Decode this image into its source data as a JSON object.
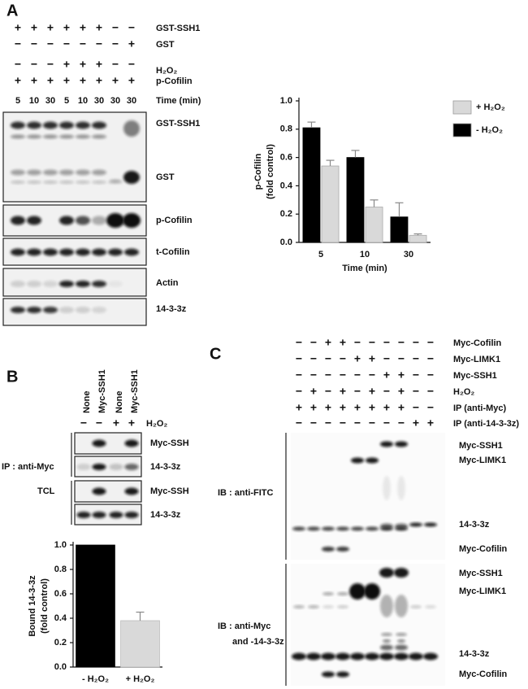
{
  "panel_a": {
    "letter": "A",
    "rows": [
      {
        "label": "GST-SSH1",
        "signs": [
          "+",
          "+",
          "+",
          "+",
          "+",
          "+",
          "−",
          "−"
        ]
      },
      {
        "label": "GST",
        "signs": [
          "−",
          "−",
          "−",
          "−",
          "−",
          "−",
          "−",
          "+"
        ]
      },
      {
        "label": "H₂O₂",
        "signs": [
          "−",
          "−",
          "−",
          "+",
          "+",
          "+",
          "−",
          "−"
        ]
      },
      {
        "label": "p-Cofilin",
        "signs": [
          "+",
          "+",
          "+",
          "+",
          "+",
          "+",
          "+",
          "+"
        ]
      }
    ],
    "time_label": "Time (min)",
    "times": [
      "5",
      "10",
      "30",
      "5",
      "10",
      "30",
      "30",
      "30"
    ],
    "blot_labels": [
      "GST-SSH1",
      "GST",
      "p-Cofilin",
      "t-Cofilin",
      "Actin",
      "14-3-3z"
    ]
  },
  "panel_b": {
    "letter": "B",
    "columns": [
      "None",
      "Myc-SSH1",
      "None",
      "Myc-SSH1"
    ],
    "h2o2_label": "H₂O₂",
    "h2o2_signs": [
      "−",
      "−",
      "+",
      "+"
    ],
    "group_labels": [
      "IP : anti-Myc",
      "TCL"
    ],
    "blot_labels": [
      "Myc-SSH",
      "14-3-3z",
      "Myc-SSH",
      "14-3-3z"
    ]
  },
  "panel_c": {
    "letter": "C",
    "rows": [
      {
        "label": "Myc-Cofilin",
        "signs": [
          "−",
          "−",
          "+",
          "+",
          "−",
          "−",
          "−",
          "−",
          "−",
          "−"
        ]
      },
      {
        "label": "Myc-LIMK1",
        "signs": [
          "−",
          "−",
          "−",
          "−",
          "+",
          "+",
          "−",
          "−",
          "−",
          "−"
        ]
      },
      {
        "label": "Myc-SSH1",
        "signs": [
          "−",
          "−",
          "−",
          "−",
          "−",
          "−",
          "+",
          "+",
          "−",
          "−"
        ]
      },
      {
        "label": "H₂O₂",
        "signs": [
          "−",
          "+",
          "−",
          "+",
          "−",
          "+",
          "−",
          "+",
          "−",
          "−"
        ]
      },
      {
        "label": "IP (anti-Myc)",
        "signs": [
          "+",
          "+",
          "+",
          "+",
          "+",
          "+",
          "+",
          "+",
          "−",
          "−"
        ]
      },
      {
        "label": "IP (anti-14-3-3z)",
        "signs": [
          "−",
          "−",
          "−",
          "−",
          "−",
          "−",
          "−",
          "−",
          "+",
          "+"
        ]
      }
    ],
    "top_side_label": "IB : anti-FITC",
    "bottom_side_label": [
      "IB : anti-Myc",
      "and -14-3-3z"
    ],
    "top_blot_labels": [
      "Myc-SSH1",
      "Myc-LIMK1",
      "14-3-3z",
      "Myc-Cofilin"
    ],
    "bottom_blot_labels": [
      "Myc-SSH1",
      "Myc-LIMK1",
      "14-3-3z",
      "Myc-Cofilin"
    ]
  },
  "chart_data": [
    {
      "type": "bar",
      "y_label": [
        "p-Cofilin",
        "(fold control)"
      ],
      "x_label": "Time (min)",
      "categories": [
        "5",
        "10",
        "30"
      ],
      "series": [
        {
          "name": "- H₂O₂",
          "color": "#000000",
          "values": [
            0.81,
            0.6,
            0.18
          ],
          "errors": [
            0.04,
            0.05,
            0.1
          ]
        },
        {
          "name": "+ H₂O₂",
          "color": "#d9d9d9",
          "values": [
            0.54,
            0.25,
            0.05
          ],
          "errors": [
            0.04,
            0.05,
            0.01
          ]
        }
      ],
      "ylim": [
        0,
        1.0
      ],
      "yticks": [
        {
          "value": 0,
          "label": "0.0"
        },
        0.2,
        0.4,
        0.6,
        0.8,
        {
          "value": 1,
          "label": "1.0"
        }
      ],
      "legend": "right"
    },
    {
      "type": "bar",
      "y_label": [
        "Bound 14-3-3z",
        "(fold control)"
      ],
      "categories": [
        "- H₂O₂",
        "+ H₂O₂"
      ],
      "values": [
        1.0,
        0.38
      ],
      "errors": [
        null,
        0.07
      ],
      "colors": [
        "#000000",
        "#d9d9d9"
      ],
      "ylim": [
        0,
        1.0
      ],
      "yticks": [
        {
          "value": 0,
          "label": "0.0"
        },
        0.2,
        0.4,
        0.6,
        0.8,
        {
          "value": 1,
          "label": "1.0"
        }
      ]
    }
  ]
}
